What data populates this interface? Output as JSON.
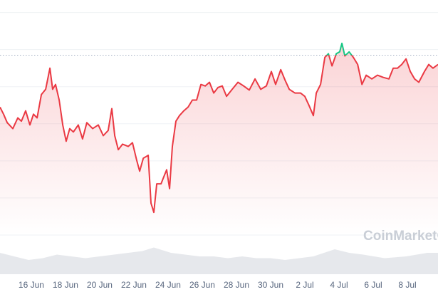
{
  "chart_data": {
    "type": "line",
    "watermark": "CoinMarketCap",
    "x": [
      14.17,
      14.38,
      14.59,
      14.92,
      15.21,
      15.42,
      15.67,
      15.92,
      16.13,
      16.34,
      16.59,
      16.84,
      17.09,
      17.25,
      17.42,
      17.63,
      17.84,
      18.04,
      18.25,
      18.46,
      18.75,
      19.0,
      19.25,
      19.59,
      19.92,
      20.21,
      20.5,
      20.71,
      20.88,
      21.09,
      21.34,
      21.67,
      21.92,
      22.17,
      22.34,
      22.55,
      22.84,
      23.0,
      23.17,
      23.34,
      23.59,
      23.75,
      23.92,
      24.09,
      24.25,
      24.46,
      24.67,
      24.92,
      25.17,
      25.42,
      25.67,
      25.92,
      26.17,
      26.42,
      26.67,
      26.92,
      27.17,
      27.42,
      27.75,
      28.09,
      28.42,
      28.75,
      29.09,
      29.42,
      29.75,
      30.04,
      30.29,
      30.59,
      30.84,
      31.09,
      31.42,
      31.75,
      32.0,
      32.25,
      32.5,
      32.67,
      32.92,
      33.17,
      33.38,
      33.59,
      33.84,
      34.04,
      34.17,
      34.34,
      34.59,
      34.84,
      35.09,
      35.34,
      35.59,
      35.92,
      36.25,
      36.59,
      36.92,
      37.17,
      37.42,
      37.67,
      37.92,
      38.17,
      38.42,
      38.67,
      39.0,
      39.25,
      39.5,
      39.79
    ],
    "series": [
      {
        "color": "#ea3943",
        "color_above": "#16c784",
        "values": [
          3.45,
          3.26,
          3.03,
          2.87,
          3.16,
          3.07,
          3.35,
          2.97,
          3.26,
          3.16,
          3.79,
          3.93,
          4.5,
          3.93,
          4.06,
          3.64,
          2.97,
          2.53,
          2.87,
          2.78,
          2.97,
          2.59,
          3.03,
          2.87,
          2.97,
          2.68,
          2.82,
          3.41,
          2.68,
          2.3,
          2.45,
          2.39,
          2.49,
          2.01,
          1.72,
          2.07,
          2.15,
          0.86,
          0.61,
          1.38,
          1.38,
          1.57,
          1.76,
          1.25,
          2.39,
          3.07,
          3.22,
          3.35,
          3.45,
          3.64,
          3.64,
          4.06,
          4.02,
          4.12,
          3.83,
          3.98,
          4.02,
          3.74,
          3.93,
          4.12,
          4.02,
          3.91,
          4.21,
          3.93,
          4.02,
          4.41,
          4.06,
          4.46,
          4.18,
          3.93,
          3.83,
          3.83,
          3.74,
          3.49,
          3.22,
          3.83,
          4.06,
          4.79,
          4.89,
          4.56,
          4.89,
          4.94,
          5.17,
          4.83,
          4.94,
          4.79,
          4.6,
          4.06,
          4.31,
          4.21,
          4.31,
          4.25,
          4.21,
          4.5,
          4.5,
          4.6,
          4.75,
          4.41,
          4.21,
          4.12,
          4.41,
          4.6,
          4.5,
          4.6
        ]
      }
    ],
    "reference": 4.85,
    "volume": {
      "color": "#e6e8ec",
      "x": [
        14.17,
        15.0,
        15.84,
        16.67,
        17.5,
        18.34,
        19.17,
        20.0,
        20.84,
        21.67,
        22.5,
        23.17,
        24.17,
        25.0,
        25.84,
        26.67,
        27.5,
        28.34,
        29.17,
        30.0,
        30.84,
        31.67,
        32.5,
        33.75,
        34.59,
        35.42,
        36.67,
        37.92,
        39.17,
        39.79
      ],
      "values": [
        0.6,
        0.5,
        0.4,
        0.45,
        0.55,
        0.5,
        0.45,
        0.5,
        0.55,
        0.6,
        0.65,
        0.75,
        0.6,
        0.55,
        0.5,
        0.5,
        0.45,
        0.5,
        0.45,
        0.45,
        0.4,
        0.45,
        0.5,
        0.7,
        0.6,
        0.55,
        0.45,
        0.5,
        0.6,
        0.6
      ],
      "ylim": [
        0,
        1
      ]
    },
    "xlim": [
      14.17,
      39.79
    ],
    "xticks": [
      {
        "value": 16,
        "label": "16 Jun"
      },
      {
        "value": 18,
        "label": "18 Jun"
      },
      {
        "value": 20,
        "label": "20 Jun"
      },
      {
        "value": 22,
        "label": "22 Jun"
      },
      {
        "value": 24,
        "label": "24 Jun"
      },
      {
        "value": 26,
        "label": "26 Jun"
      },
      {
        "value": 28,
        "label": "28 Jun"
      },
      {
        "value": 30,
        "label": "30 Jun"
      },
      {
        "value": 32,
        "label": "2 Jul"
      },
      {
        "value": 34,
        "label": "4 Jul"
      },
      {
        "value": 36,
        "label": "6 Jul"
      },
      {
        "value": 38,
        "label": "8 Jul"
      }
    ],
    "ylim": [
      0,
      6
    ],
    "yticks": [
      0,
      1,
      2,
      3,
      4,
      5,
      6
    ],
    "grid": true
  }
}
